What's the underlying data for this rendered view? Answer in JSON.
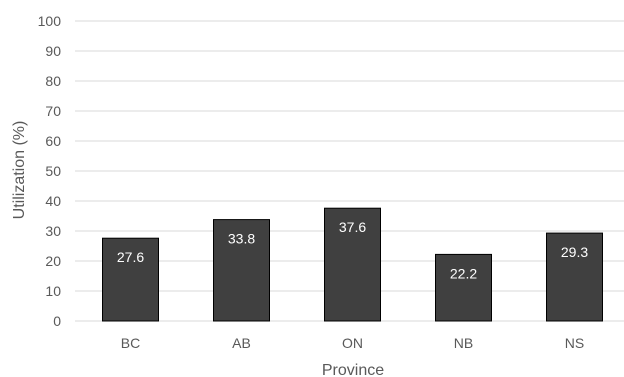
{
  "chart_data": {
    "type": "bar",
    "title": "",
    "xlabel": "Province",
    "ylabel": "Utilization (%)",
    "categories": [
      "BC",
      "AB",
      "ON",
      "NB",
      "NS"
    ],
    "values": [
      27.6,
      33.8,
      37.6,
      22.2,
      29.3
    ],
    "data_labels": [
      "27.6",
      "33.8",
      "37.6",
      "22.2",
      "29.3"
    ],
    "ylim": [
      0,
      100
    ],
    "yticks": [
      0,
      10,
      20,
      30,
      40,
      50,
      60,
      70,
      80,
      90,
      100
    ],
    "grid": true,
    "legend": "none",
    "colors": {
      "bar_fill": "#404040",
      "bar_stroke": "#000000",
      "gridline": "#d9d9d9",
      "tick_text": "#595959",
      "label_text": "#ffffff"
    }
  }
}
